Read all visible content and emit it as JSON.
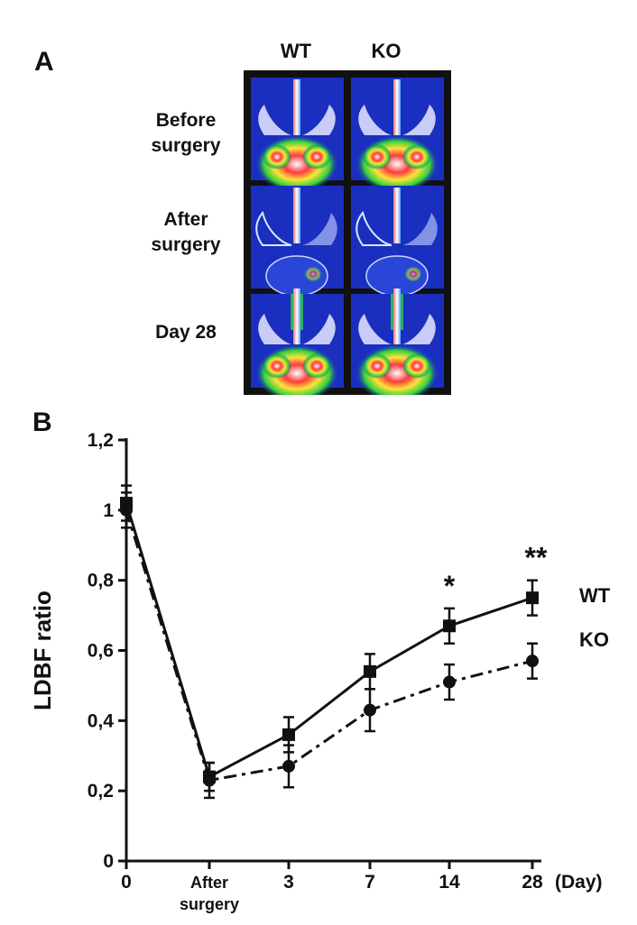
{
  "panel_a": {
    "label": "A",
    "columns": [
      "WT",
      "KO"
    ],
    "rows": [
      {
        "line1": "Before",
        "line2": "surgery"
      },
      {
        "line1": "After",
        "line2": "surgery"
      },
      {
        "line1": "Day 28",
        "line2": ""
      }
    ]
  },
  "panel_b": {
    "label": "B"
  },
  "chart_data": {
    "type": "line",
    "categories": [
      "0",
      "After surgery",
      "3",
      "7",
      "14",
      "28"
    ],
    "category_lines": [
      [
        "0"
      ],
      [
        "After",
        "surgery"
      ],
      [
        "3"
      ],
      [
        "7"
      ],
      [
        "14"
      ],
      [
        "28"
      ]
    ],
    "x_unit": "(Day)",
    "ylabel": "LDBF ratio",
    "ylim": [
      0,
      1.2
    ],
    "yticks": [
      "0",
      "0,2",
      "0,4",
      "0,6",
      "0,8",
      "1",
      "1,2"
    ],
    "series": [
      {
        "name": "WT",
        "values": [
          1.02,
          0.24,
          0.36,
          0.54,
          0.67,
          0.75
        ],
        "errors": [
          0.05,
          0.04,
          0.05,
          0.05,
          0.05,
          0.05
        ],
        "style": "solid",
        "marker": "square"
      },
      {
        "name": "KO",
        "values": [
          1.0,
          0.23,
          0.27,
          0.43,
          0.51,
          0.57
        ],
        "errors": [
          0.05,
          0.05,
          0.06,
          0.06,
          0.05,
          0.05
        ],
        "style": "dash-dot",
        "marker": "circle"
      }
    ],
    "annotations": [
      {
        "category": "14",
        "text": "*"
      },
      {
        "category": "28",
        "text": "**"
      }
    ]
  },
  "colors": {
    "line": "#111111",
    "heat_background": "#1a2fbf",
    "frame": "#111111"
  }
}
